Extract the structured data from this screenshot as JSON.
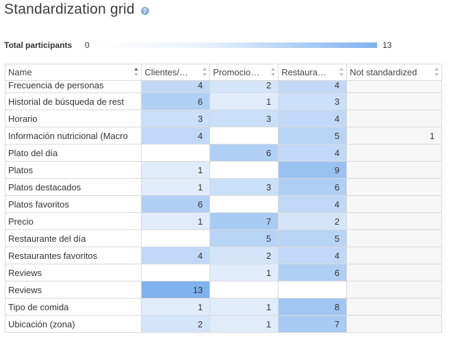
{
  "header": {
    "title": "Standardization grid",
    "help_icon": "question-circle-icon"
  },
  "legend": {
    "label": "Total participants",
    "min": "0",
    "max": "13",
    "max_value": 13,
    "color_low": "#ffffff",
    "color_high": "#7fb2ee"
  },
  "table": {
    "columns": [
      {
        "label": "Name",
        "sort": "asc"
      },
      {
        "label": "Clientes/…",
        "sort": "none"
      },
      {
        "label": "Promocio…",
        "sort": "none"
      },
      {
        "label": "Restaura…",
        "sort": "none"
      },
      {
        "label": "Not standardized",
        "sort": "none"
      }
    ],
    "rows": [
      {
        "name": "Frecuencia de personas",
        "values": [
          "4",
          "2",
          "4",
          ""
        ]
      },
      {
        "name": "Historial de búsqueda de rest",
        "values": [
          "6",
          "1",
          "3",
          ""
        ]
      },
      {
        "name": "Horario",
        "values": [
          "3",
          "3",
          "4",
          ""
        ]
      },
      {
        "name": "Información nutricional (Macro",
        "values": [
          "4",
          "",
          "5",
          "1"
        ]
      },
      {
        "name": "Plato del día",
        "values": [
          "",
          "6",
          "4",
          ""
        ]
      },
      {
        "name": "Platos",
        "values": [
          "1",
          "",
          "9",
          ""
        ]
      },
      {
        "name": "Platos destacados",
        "values": [
          "1",
          "3",
          "6",
          ""
        ]
      },
      {
        "name": "Platos favoritos",
        "values": [
          "6",
          "",
          "4",
          ""
        ]
      },
      {
        "name": "Precio",
        "values": [
          "1",
          "7",
          "2",
          ""
        ]
      },
      {
        "name": "Restaurante del día",
        "values": [
          "",
          "5",
          "5",
          ""
        ]
      },
      {
        "name": "Restaurantes favoritos",
        "values": [
          "4",
          "2",
          "4",
          ""
        ]
      },
      {
        "name": "Reviews",
        "values": [
          "",
          "1",
          "6",
          ""
        ]
      },
      {
        "name": "Reviews",
        "values": [
          "13",
          "",
          "",
          ""
        ]
      },
      {
        "name": "Tipo de comida",
        "values": [
          "1",
          "1",
          "8",
          ""
        ]
      },
      {
        "name": "Ubicación (zona)",
        "values": [
          "2",
          "1",
          "7",
          ""
        ]
      }
    ]
  }
}
